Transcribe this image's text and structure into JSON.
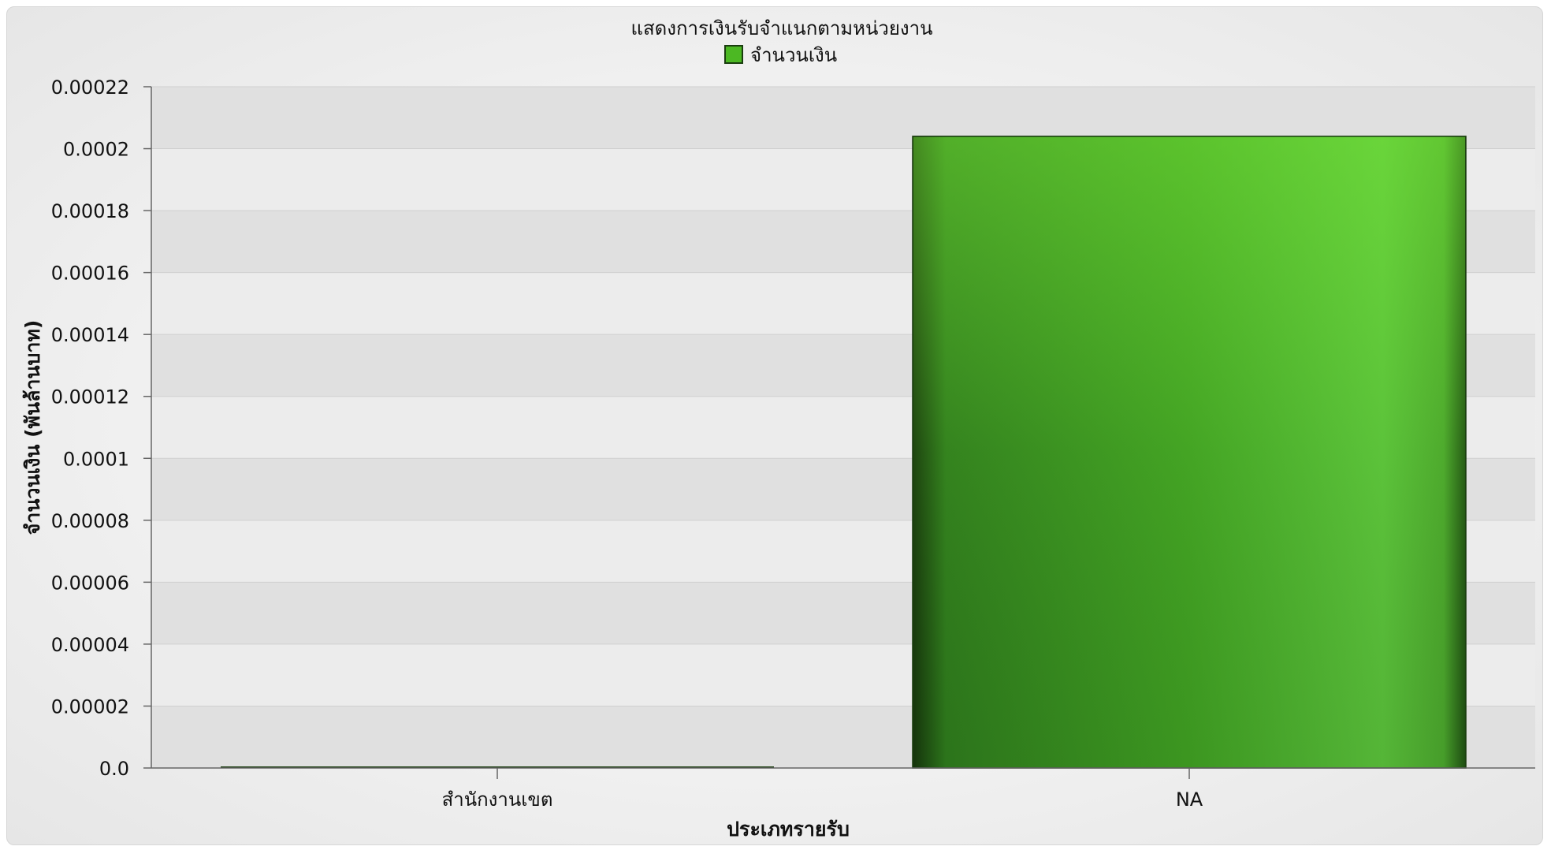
{
  "chart_data": {
    "type": "bar",
    "title": "แสดงการเงินรับจำแนกตามหน่วยงาน",
    "xlabel": "ประเภทรายรับ",
    "ylabel": "จำนวนเงิน (พันล้านบาท)",
    "categories": [
      "สำนักงานเขต",
      "NA"
    ],
    "series": [
      {
        "name": "จำนวนเงิน",
        "values": [
          0.0,
          0.000204
        ]
      }
    ],
    "ylim": [
      0,
      0.00022
    ],
    "yticks": [
      "0.0",
      "0.00002",
      "0.00004",
      "0.00006",
      "0.00008",
      "0.0001",
      "0.00012",
      "0.00014",
      "0.00016",
      "0.00018",
      "0.0002",
      "0.00022"
    ],
    "grid": true,
    "legend_position": "top-center",
    "colors": {
      "series": "#4cb823",
      "series_dark": "#1f5a12",
      "band_light": "#ececec",
      "band_dark": "#e0e0e0"
    }
  }
}
